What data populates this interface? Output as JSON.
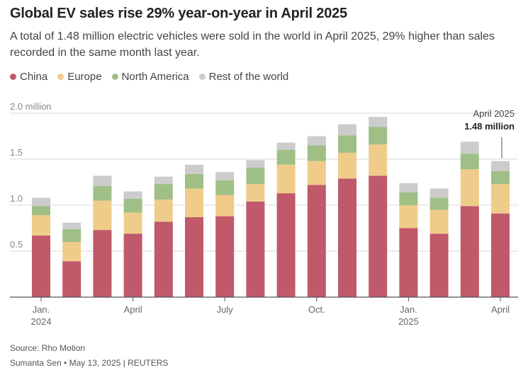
{
  "title": "Global EV sales rise 29% year-on-year in April 2025",
  "subtitle": "A total of 1.48 million electric vehicles were sold in the world in April 2025, 29% higher than sales recorded in the same month last year.",
  "legend": [
    {
      "label": "China",
      "color": "#c0596a"
    },
    {
      "label": "Europe",
      "color": "#f0cc8a"
    },
    {
      "label": "North America",
      "color": "#9fbf86"
    },
    {
      "label": "Rest of the world",
      "color": "#cccccc"
    }
  ],
  "source": "Source: Rho Motion",
  "credit": "Sumanta Sen • May 13, 2025 | REUTERS",
  "chart_data": {
    "type": "bar",
    "stacked": true,
    "categories": [
      "Jan 2024",
      "Feb 2024",
      "Mar 2024",
      "Apr 2024",
      "May 2024",
      "Jun 2024",
      "Jul 2024",
      "Aug 2024",
      "Sep 2024",
      "Oct 2024",
      "Nov 2024",
      "Dec 2024",
      "Jan 2025",
      "Feb 2025",
      "Mar 2025",
      "Apr 2025"
    ],
    "series": [
      {
        "name": "China",
        "color": "#c0596a",
        "values": [
          0.67,
          0.39,
          0.73,
          0.69,
          0.82,
          0.87,
          0.88,
          1.04,
          1.13,
          1.22,
          1.29,
          1.32,
          0.75,
          0.69,
          0.99,
          0.91
        ]
      },
      {
        "name": "Europe",
        "color": "#f0cc8a",
        "values": [
          0.22,
          0.21,
          0.32,
          0.23,
          0.24,
          0.31,
          0.23,
          0.19,
          0.31,
          0.26,
          0.28,
          0.34,
          0.25,
          0.26,
          0.4,
          0.32
        ]
      },
      {
        "name": "North America",
        "color": "#9fbf86",
        "values": [
          0.1,
          0.14,
          0.16,
          0.15,
          0.17,
          0.16,
          0.16,
          0.18,
          0.16,
          0.17,
          0.19,
          0.19,
          0.14,
          0.13,
          0.17,
          0.14
        ]
      },
      {
        "name": "Rest of the world",
        "color": "#cccccc",
        "values": [
          0.09,
          0.07,
          0.11,
          0.08,
          0.08,
          0.1,
          0.09,
          0.08,
          0.08,
          0.1,
          0.12,
          0.11,
          0.1,
          0.1,
          0.13,
          0.11
        ]
      }
    ],
    "y_axis": {
      "min": 0,
      "max": 2.0,
      "ticks": [
        0.5,
        1.0,
        1.5,
        2.0
      ],
      "tick_labels": [
        "0.5",
        "1.0",
        "1.5",
        "2.0 million"
      ]
    },
    "x_tick_labels": [
      {
        "index": 0,
        "line1": "Jan.",
        "line2": "2024"
      },
      {
        "index": 3,
        "line1": "April",
        "line2": ""
      },
      {
        "index": 6,
        "line1": "July",
        "line2": ""
      },
      {
        "index": 9,
        "line1": "Oct.",
        "line2": ""
      },
      {
        "index": 12,
        "line1": "Jan.",
        "line2": "2025"
      },
      {
        "index": 15,
        "line1": "April",
        "line2": ""
      }
    ],
    "annotation": {
      "index": 15,
      "line1": "April 2025",
      "line2": "1.48 million"
    }
  }
}
